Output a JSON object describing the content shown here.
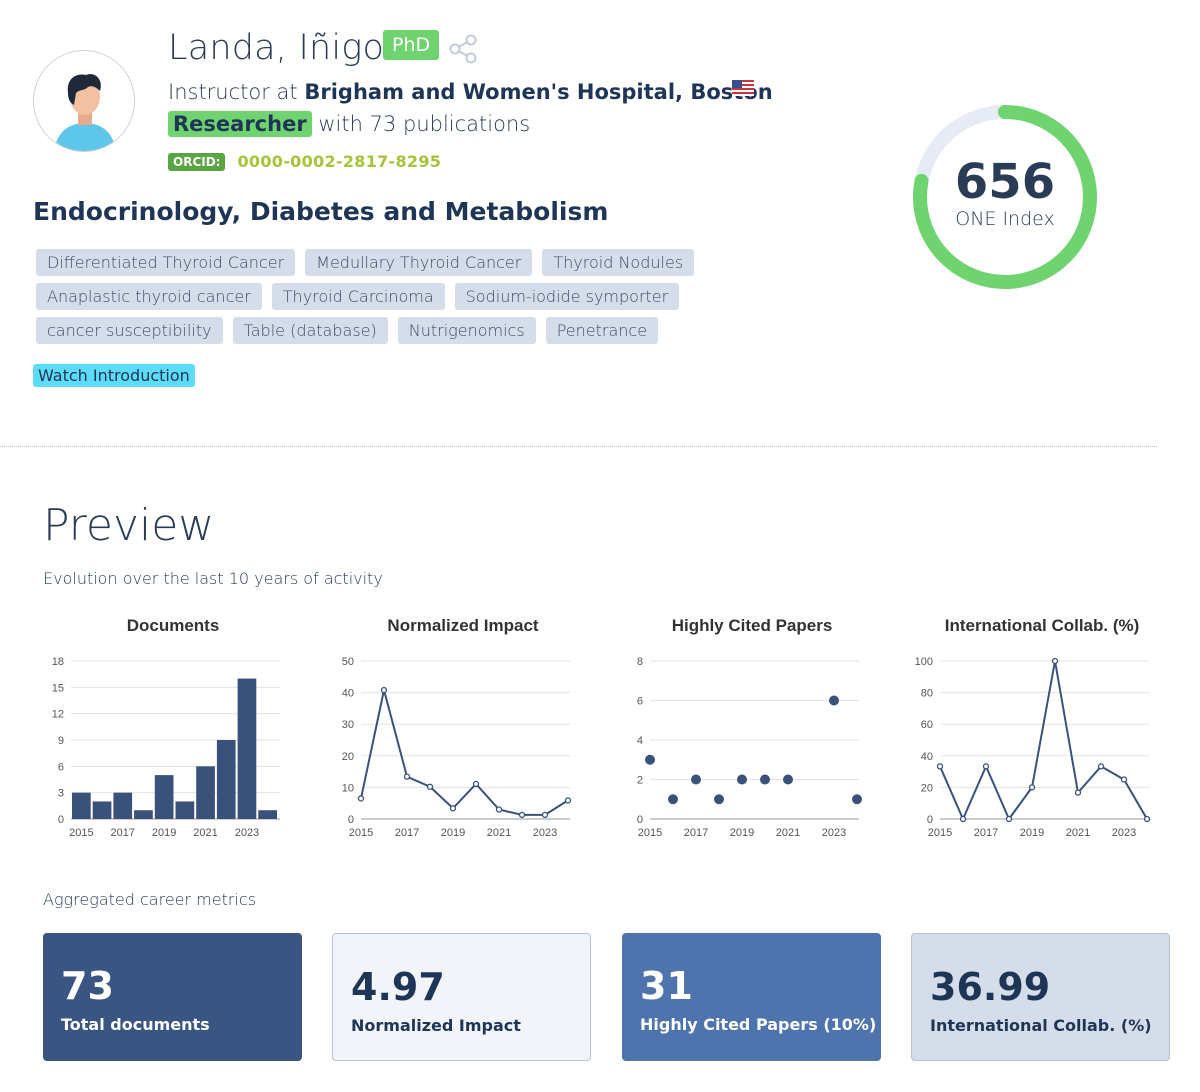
{
  "profile": {
    "name": "Landa, Iñigo",
    "degree": "PhD",
    "position_prefix": "Instructor at",
    "institution": "Brigham and Women's Hospital, Boston",
    "role": "Researcher",
    "publications_text": "with 73 publications",
    "orcid_label": "ORCID:",
    "orcid_id": "0000-0002-2817-8295",
    "field": "Endocrinology, Diabetes and Metabolism",
    "tags": [
      [
        "Differentiated Thyroid Cancer",
        "Medullary Thyroid Cancer",
        "Thyroid Nodules"
      ],
      [
        "Anaplastic thyroid cancer",
        "Thyroid Carcinoma",
        "Sodium-iodide symporter"
      ],
      [
        "cancer susceptibility",
        "Table (database)",
        "Nutrigenomics",
        "Penetrance"
      ]
    ],
    "watch_label": "Watch Introduction",
    "icons": [
      "avatar",
      "share-icon",
      "us-flag-icon"
    ]
  },
  "one_index": {
    "value": "656",
    "label": "ONE Index",
    "fraction": 0.78
  },
  "preview": {
    "title": "Preview",
    "subtitle": "Evolution over the last 10 years of activity"
  },
  "chart_data": [
    {
      "type": "bar",
      "title": "Documents",
      "x": [
        2015,
        2016,
        2017,
        2018,
        2019,
        2020,
        2021,
        2022,
        2023,
        2024
      ],
      "values": [
        3,
        2,
        3,
        1,
        5,
        2,
        6,
        9,
        16,
        1
      ],
      "ylim": [
        0,
        18
      ],
      "yticks": [
        0,
        3,
        6,
        9,
        12,
        15,
        18
      ],
      "xtick_labels": [
        "2015",
        "2017",
        "2019",
        "2021",
        "2023"
      ],
      "color": "#3a5279"
    },
    {
      "type": "line",
      "title": "Normalized Impact",
      "x": [
        2015,
        2016,
        2017,
        2018,
        2019,
        2020,
        2021,
        2022,
        2023,
        2024
      ],
      "values": [
        6.5,
        40.8,
        13.4,
        10.2,
        3.4,
        11.1,
        3,
        1.3,
        1.3,
        5.9
      ],
      "ylim": [
        0,
        50
      ],
      "yticks": [
        0,
        10,
        20,
        30,
        40,
        50
      ],
      "xtick_labels": [
        "2015",
        "2017",
        "2019",
        "2021",
        "2023"
      ],
      "color": "#3a5279"
    },
    {
      "type": "scatter",
      "title": "Highly Cited Papers",
      "x": [
        2015,
        2016,
        2017,
        2018,
        2019,
        2020,
        2021,
        2023,
        2024
      ],
      "values": [
        3,
        1,
        2,
        1,
        2,
        2,
        2,
        6,
        1
      ],
      "ylim": [
        0,
        8
      ],
      "yticks": [
        0,
        2,
        4,
        6,
        8
      ],
      "xtick_labels": [
        "2015",
        "2017",
        "2019",
        "2021",
        "2023"
      ],
      "color": "#3a5279"
    },
    {
      "type": "line",
      "title": "International Collab. (%)",
      "x": [
        2015,
        2016,
        2017,
        2018,
        2019,
        2020,
        2021,
        2022,
        2023,
        2024
      ],
      "values": [
        33.3,
        0,
        33.3,
        0,
        20,
        100,
        16.7,
        33.3,
        25,
        0
      ],
      "ylim": [
        0,
        100
      ],
      "yticks": [
        0,
        20,
        40,
        60,
        80,
        100
      ],
      "xtick_labels": [
        "2015",
        "2017",
        "2019",
        "2021",
        "2023"
      ],
      "color": "#3a5279"
    }
  ],
  "aggregated": {
    "title": "Aggregated career metrics",
    "cards": [
      {
        "value": "73",
        "label": "Total documents",
        "bg": "#3b5582",
        "fg": "#ffffff"
      },
      {
        "value": "4.97",
        "label": "Normalized Impact",
        "bg": "#f1f4f8",
        "fg": "#1f3556"
      },
      {
        "value": "31",
        "label": "Highly Cited Papers (10%)",
        "bg": "#4f74ad",
        "fg": "#ffffff"
      },
      {
        "value": "36.99",
        "label": "International Collab. (%)",
        "bg": "#d4dde9",
        "fg": "#1f3556"
      }
    ]
  },
  "colors": {
    "green": "#6fd36f",
    "navy": "#1f3556",
    "tag_bg": "#d4dde9",
    "cyan": "#5cdcf8",
    "gauge_track": "#e6ebf5"
  }
}
